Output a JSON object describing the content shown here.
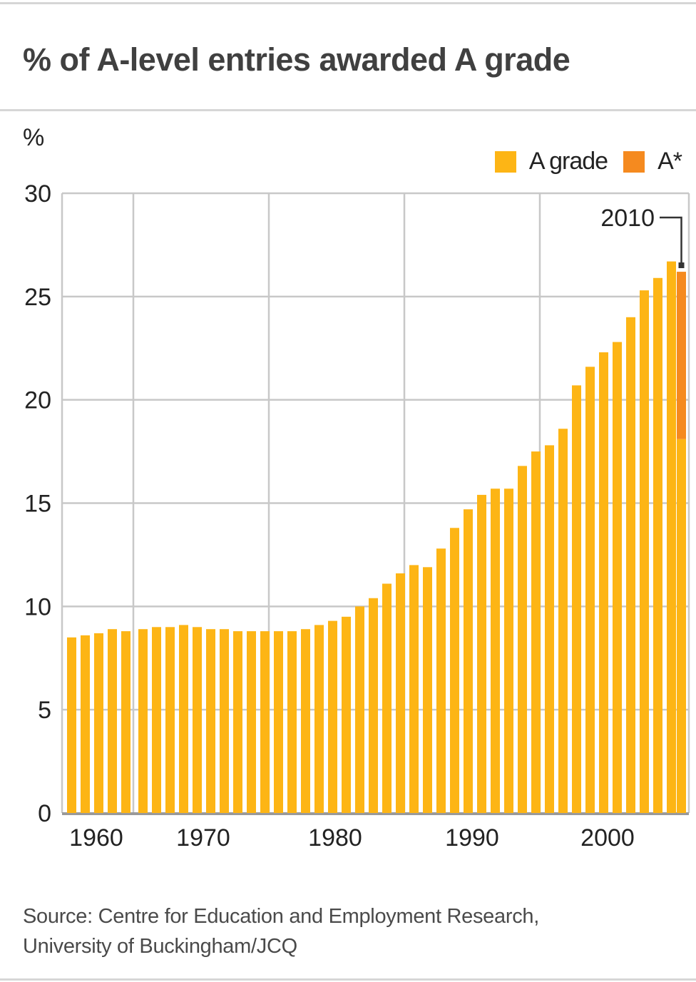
{
  "header": {
    "title": "% of A-level entries awarded A grade"
  },
  "axis": {
    "y_unit": "%"
  },
  "legend": {
    "items": [
      {
        "label": "A grade",
        "color": "#FDB515"
      },
      {
        "label": "A*",
        "color": "#F58A1F"
      }
    ]
  },
  "annotation": {
    "label": "2010"
  },
  "footer": {
    "source_line1": "Source: Centre for Education and Employment Research,",
    "source_line2": "University of Buckingham/JCQ"
  },
  "colors": {
    "a_grade": "#FDB515",
    "a_star": "#F58A1F",
    "grid": "#c8c8c8",
    "axis": "#9a9a9a",
    "text": "#222222"
  },
  "chart_data": {
    "type": "bar",
    "stacked": true,
    "title": "% of A-level entries awarded A grade",
    "xlabel": "",
    "ylabel": "%",
    "ylim": [
      0,
      30
    ],
    "yticks": [
      0,
      5,
      10,
      15,
      20,
      25,
      30
    ],
    "xtick_labels": [
      "1960",
      "1970",
      "1980",
      "1990",
      "2000"
    ],
    "grid": true,
    "legend_position": "top-right",
    "annotations": [
      {
        "text": "2010",
        "x": 2010
      }
    ],
    "categories": [
      1965,
      1966,
      1967,
      1968,
      1969,
      1970,
      1971,
      1972,
      1973,
      1974,
      1975,
      1976,
      1977,
      1978,
      1979,
      1980,
      1981,
      1982,
      1983,
      1984,
      1985,
      1986,
      1987,
      1988,
      1989,
      1990,
      1991,
      1992,
      1993,
      1994,
      1995,
      1996,
      1997,
      1998,
      1999,
      2000,
      2001,
      2002,
      2003,
      2004,
      2005,
      2006,
      2007,
      2008,
      2009,
      2010
    ],
    "series": [
      {
        "name": "A grade",
        "color": "#FDB515",
        "values": [
          8.5,
          8.6,
          8.7,
          8.9,
          8.8,
          8.9,
          9.0,
          9.0,
          9.1,
          9.0,
          8.9,
          8.9,
          8.8,
          8.8,
          8.8,
          8.8,
          8.8,
          8.9,
          9.1,
          9.3,
          9.5,
          10.0,
          10.4,
          11.1,
          11.6,
          12.0,
          11.9,
          12.8,
          13.8,
          14.7,
          15.4,
          15.7,
          15.7,
          16.8,
          17.5,
          17.8,
          18.6,
          20.7,
          21.6,
          22.3,
          22.8,
          24.0,
          25.3,
          25.9,
          26.7,
          18.1
        ]
      },
      {
        "name": "A*",
        "color": "#F58A1F",
        "values": [
          0,
          0,
          0,
          0,
          0,
          0,
          0,
          0,
          0,
          0,
          0,
          0,
          0,
          0,
          0,
          0,
          0,
          0,
          0,
          0,
          0,
          0,
          0,
          0,
          0,
          0,
          0,
          0,
          0,
          0,
          0,
          0,
          0,
          0,
          0,
          0,
          0,
          0,
          0,
          0,
          0,
          0,
          0,
          0,
          0,
          8.1
        ]
      }
    ]
  }
}
